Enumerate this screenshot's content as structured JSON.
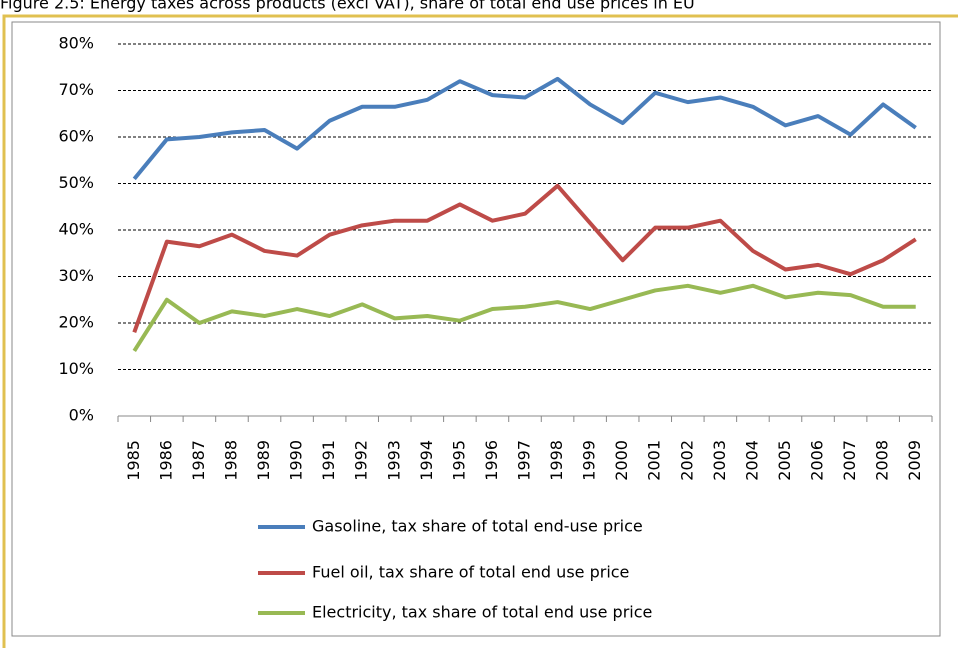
{
  "chart_data": {
    "type": "line",
    "title": "Figure 2.5: Energy taxes across products (excl VAT), share of total end use prices in EU",
    "categories": [
      "1985",
      "1986",
      "1987",
      "1988",
      "1989",
      "1990",
      "1991",
      "1992",
      "1993",
      "1994",
      "1995",
      "1996",
      "1997",
      "1998",
      "1999",
      "2000",
      "2001",
      "2002",
      "2003",
      "2004",
      "2005",
      "2006",
      "2007",
      "2008",
      "2009"
    ],
    "series": [
      {
        "name": "Gasoline, tax share of total end-use price",
        "color": "#4a7ebb",
        "values": [
          51,
          59.5,
          60,
          61,
          61.5,
          57.5,
          63.5,
          66.5,
          66.5,
          68,
          72,
          69,
          68.5,
          72.5,
          67,
          63,
          69.5,
          67.5,
          68.5,
          66.5,
          62.5,
          64.5,
          60.5,
          67,
          62
        ]
      },
      {
        "name": "Fuel oil, tax share of total end use price",
        "color": "#be4b48",
        "values": [
          18,
          37.5,
          36.5,
          39,
          35.5,
          34.5,
          39,
          41,
          42,
          42,
          45.5,
          42,
          43.5,
          49.5,
          41.5,
          33.5,
          40.5,
          40.5,
          42,
          35.5,
          31.5,
          32.5,
          30.5,
          33.5,
          38
        ]
      },
      {
        "name": "Electricity, tax share of total end use price",
        "color": "#98b954",
        "values": [
          14,
          25,
          20,
          22.5,
          21.5,
          23,
          21.5,
          24,
          21,
          21.5,
          20.5,
          23,
          23.5,
          24.5,
          23,
          25,
          27,
          28,
          26.5,
          28,
          25.5,
          26.5,
          26,
          23.5,
          23.5
        ]
      }
    ],
    "ylim": [
      0,
      80
    ],
    "yticks": [
      {
        "value": 0,
        "label": "0%"
      },
      {
        "value": 10,
        "label": "10%"
      },
      {
        "value": 20,
        "label": "20%"
      },
      {
        "value": 30,
        "label": "30%"
      },
      {
        "value": 40,
        "label": "40%"
      },
      {
        "value": 50,
        "label": "50%"
      },
      {
        "value": 60,
        "label": "60%"
      },
      {
        "value": 70,
        "label": "70%"
      },
      {
        "value": 80,
        "label": "80%"
      }
    ],
    "grid": true,
    "legend": "bottom"
  }
}
